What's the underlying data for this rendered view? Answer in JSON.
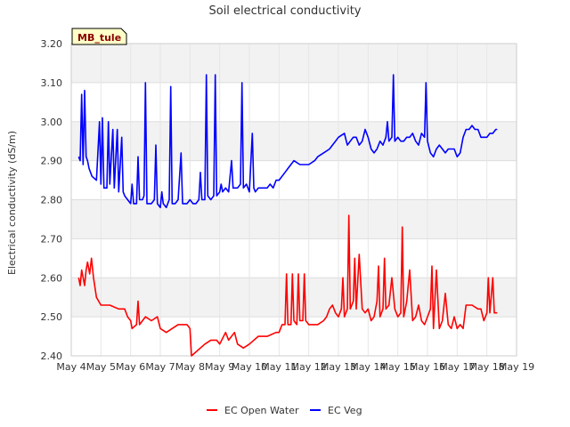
{
  "chart_data": {
    "type": "line",
    "title": "Soil electrical conductivity",
    "ylabel": "Electrical conductivity (dS/m)",
    "xlabel": "",
    "site_badge": "MB_tule",
    "ylim": [
      2.4,
      3.2
    ],
    "yticks": [
      "2.40",
      "2.50",
      "2.60",
      "2.70",
      "2.80",
      "2.90",
      "3.00",
      "3.10",
      "3.20"
    ],
    "xlim": [
      4,
      19
    ],
    "xticks": [
      {
        "day": 4,
        "label": "May 4"
      },
      {
        "day": 5,
        "label": "May 5"
      },
      {
        "day": 6,
        "label": "May 6"
      },
      {
        "day": 7,
        "label": "May 7"
      },
      {
        "day": 8,
        "label": "May 8"
      },
      {
        "day": 9,
        "label": "May 9"
      },
      {
        "day": 10,
        "label": "May 10"
      },
      {
        "day": 11,
        "label": "May 11"
      },
      {
        "day": 12,
        "label": "May 12"
      },
      {
        "day": 13,
        "label": "May 13"
      },
      {
        "day": 14,
        "label": "May 14"
      },
      {
        "day": 15,
        "label": "May 15"
      },
      {
        "day": 16,
        "label": "May 16"
      },
      {
        "day": 17,
        "label": "May 17"
      },
      {
        "day": 18,
        "label": "May 18"
      },
      {
        "day": 19,
        "label": "May 19"
      }
    ],
    "grid": true,
    "legend_position": "bottom",
    "series": [
      {
        "name": "EC Open Water",
        "color": "#ff0000",
        "points": [
          [
            4.25,
            2.6
          ],
          [
            4.3,
            2.58
          ],
          [
            4.35,
            2.62
          ],
          [
            4.45,
            2.58
          ],
          [
            4.5,
            2.62
          ],
          [
            4.55,
            2.64
          ],
          [
            4.62,
            2.61
          ],
          [
            4.68,
            2.65
          ],
          [
            4.75,
            2.6
          ],
          [
            4.85,
            2.55
          ],
          [
            5.0,
            2.53
          ],
          [
            5.3,
            2.53
          ],
          [
            5.6,
            2.52
          ],
          [
            5.8,
            2.52
          ],
          [
            5.9,
            2.5
          ],
          [
            6.0,
            2.49
          ],
          [
            6.05,
            2.47
          ],
          [
            6.2,
            2.48
          ],
          [
            6.25,
            2.54
          ],
          [
            6.3,
            2.48
          ],
          [
            6.5,
            2.5
          ],
          [
            6.7,
            2.49
          ],
          [
            6.9,
            2.5
          ],
          [
            7.0,
            2.47
          ],
          [
            7.2,
            2.46
          ],
          [
            7.4,
            2.47
          ],
          [
            7.6,
            2.48
          ],
          [
            7.9,
            2.48
          ],
          [
            8.0,
            2.47
          ],
          [
            8.05,
            2.4
          ],
          [
            8.2,
            2.41
          ],
          [
            8.5,
            2.43
          ],
          [
            8.7,
            2.44
          ],
          [
            8.9,
            2.44
          ],
          [
            9.0,
            2.43
          ],
          [
            9.2,
            2.46
          ],
          [
            9.3,
            2.44
          ],
          [
            9.5,
            2.46
          ],
          [
            9.6,
            2.43
          ],
          [
            9.8,
            2.42
          ],
          [
            10.0,
            2.43
          ],
          [
            10.3,
            2.45
          ],
          [
            10.6,
            2.45
          ],
          [
            10.9,
            2.46
          ],
          [
            11.0,
            2.46
          ],
          [
            11.1,
            2.48
          ],
          [
            11.2,
            2.48
          ],
          [
            11.25,
            2.61
          ],
          [
            11.3,
            2.48
          ],
          [
            11.4,
            2.48
          ],
          [
            11.45,
            2.61
          ],
          [
            11.5,
            2.49
          ],
          [
            11.6,
            2.48
          ],
          [
            11.65,
            2.61
          ],
          [
            11.7,
            2.49
          ],
          [
            11.8,
            2.49
          ],
          [
            11.85,
            2.61
          ],
          [
            11.9,
            2.49
          ],
          [
            12.0,
            2.48
          ],
          [
            12.3,
            2.48
          ],
          [
            12.5,
            2.49
          ],
          [
            12.6,
            2.5
          ],
          [
            12.7,
            2.52
          ],
          [
            12.8,
            2.53
          ],
          [
            12.9,
            2.51
          ],
          [
            13.0,
            2.5
          ],
          [
            13.1,
            2.52
          ],
          [
            13.15,
            2.6
          ],
          [
            13.2,
            2.5
          ],
          [
            13.3,
            2.52
          ],
          [
            13.35,
            2.76
          ],
          [
            13.4,
            2.52
          ],
          [
            13.5,
            2.54
          ],
          [
            13.55,
            2.65
          ],
          [
            13.6,
            2.52
          ],
          [
            13.7,
            2.66
          ],
          [
            13.8,
            2.52
          ],
          [
            13.9,
            2.51
          ],
          [
            14.0,
            2.52
          ],
          [
            14.1,
            2.49
          ],
          [
            14.2,
            2.5
          ],
          [
            14.3,
            2.54
          ],
          [
            14.35,
            2.63
          ],
          [
            14.4,
            2.5
          ],
          [
            14.5,
            2.52
          ],
          [
            14.55,
            2.65
          ],
          [
            14.6,
            2.52
          ],
          [
            14.7,
            2.53
          ],
          [
            14.8,
            2.6
          ],
          [
            14.9,
            2.52
          ],
          [
            15.0,
            2.5
          ],
          [
            15.1,
            2.51
          ],
          [
            15.15,
            2.73
          ],
          [
            15.2,
            2.5
          ],
          [
            15.3,
            2.54
          ],
          [
            15.4,
            2.62
          ],
          [
            15.5,
            2.49
          ],
          [
            15.6,
            2.5
          ],
          [
            15.7,
            2.53
          ],
          [
            15.8,
            2.49
          ],
          [
            15.9,
            2.48
          ],
          [
            16.0,
            2.5
          ],
          [
            16.1,
            2.52
          ],
          [
            16.15,
            2.63
          ],
          [
            16.2,
            2.47
          ],
          [
            16.3,
            2.62
          ],
          [
            16.4,
            2.47
          ],
          [
            16.5,
            2.49
          ],
          [
            16.6,
            2.56
          ],
          [
            16.7,
            2.48
          ],
          [
            16.8,
            2.47
          ],
          [
            16.9,
            2.5
          ],
          [
            17.0,
            2.47
          ],
          [
            17.1,
            2.48
          ],
          [
            17.2,
            2.47
          ],
          [
            17.3,
            2.53
          ],
          [
            17.5,
            2.53
          ],
          [
            17.7,
            2.52
          ],
          [
            17.8,
            2.52
          ],
          [
            17.9,
            2.49
          ],
          [
            18.0,
            2.51
          ],
          [
            18.05,
            2.6
          ],
          [
            18.1,
            2.51
          ],
          [
            18.2,
            2.6
          ],
          [
            18.25,
            2.51
          ],
          [
            18.35,
            2.51
          ]
        ]
      },
      {
        "name": "EC Veg",
        "color": "#0000ff",
        "points": [
          [
            4.25,
            2.91
          ],
          [
            4.3,
            2.9
          ],
          [
            4.35,
            3.07
          ],
          [
            4.4,
            2.89
          ],
          [
            4.45,
            3.08
          ],
          [
            4.5,
            2.91
          ],
          [
            4.55,
            2.9
          ],
          [
            4.6,
            2.88
          ],
          [
            4.7,
            2.86
          ],
          [
            4.85,
            2.85
          ],
          [
            4.95,
            3.0
          ],
          [
            5.0,
            2.84
          ],
          [
            5.05,
            3.01
          ],
          [
            5.1,
            2.83
          ],
          [
            5.2,
            2.83
          ],
          [
            5.25,
            3.0
          ],
          [
            5.3,
            2.84
          ],
          [
            5.4,
            2.98
          ],
          [
            5.45,
            2.83
          ],
          [
            5.55,
            2.98
          ],
          [
            5.6,
            2.82
          ],
          [
            5.7,
            2.96
          ],
          [
            5.75,
            2.82
          ],
          [
            5.8,
            2.81
          ],
          [
            5.9,
            2.8
          ],
          [
            6.0,
            2.79
          ],
          [
            6.05,
            2.84
          ],
          [
            6.1,
            2.79
          ],
          [
            6.2,
            2.79
          ],
          [
            6.25,
            2.91
          ],
          [
            6.3,
            2.8
          ],
          [
            6.4,
            2.8
          ],
          [
            6.45,
            2.81
          ],
          [
            6.5,
            3.1
          ],
          [
            6.55,
            2.79
          ],
          [
            6.7,
            2.79
          ],
          [
            6.8,
            2.8
          ],
          [
            6.85,
            2.94
          ],
          [
            6.9,
            2.79
          ],
          [
            7.0,
            2.78
          ],
          [
            7.05,
            2.82
          ],
          [
            7.1,
            2.79
          ],
          [
            7.2,
            2.78
          ],
          [
            7.3,
            2.8
          ],
          [
            7.35,
            3.09
          ],
          [
            7.4,
            2.79
          ],
          [
            7.5,
            2.79
          ],
          [
            7.6,
            2.8
          ],
          [
            7.7,
            2.92
          ],
          [
            7.75,
            2.79
          ],
          [
            7.9,
            2.79
          ],
          [
            8.0,
            2.8
          ],
          [
            8.1,
            2.79
          ],
          [
            8.2,
            2.79
          ],
          [
            8.3,
            2.8
          ],
          [
            8.35,
            2.87
          ],
          [
            8.4,
            2.8
          ],
          [
            8.5,
            2.8
          ],
          [
            8.55,
            3.12
          ],
          [
            8.6,
            2.81
          ],
          [
            8.7,
            2.8
          ],
          [
            8.8,
            2.81
          ],
          [
            8.85,
            3.12
          ],
          [
            8.9,
            2.81
          ],
          [
            9.0,
            2.82
          ],
          [
            9.05,
            2.84
          ],
          [
            9.1,
            2.82
          ],
          [
            9.2,
            2.83
          ],
          [
            9.3,
            2.82
          ],
          [
            9.4,
            2.9
          ],
          [
            9.45,
            2.83
          ],
          [
            9.6,
            2.83
          ],
          [
            9.7,
            2.84
          ],
          [
            9.75,
            3.1
          ],
          [
            9.8,
            2.83
          ],
          [
            9.9,
            2.84
          ],
          [
            10.0,
            2.82
          ],
          [
            10.1,
            2.97
          ],
          [
            10.15,
            2.83
          ],
          [
            10.2,
            2.82
          ],
          [
            10.3,
            2.83
          ],
          [
            10.5,
            2.83
          ],
          [
            10.6,
            2.83
          ],
          [
            10.7,
            2.84
          ],
          [
            10.8,
            2.83
          ],
          [
            10.9,
            2.85
          ],
          [
            11.0,
            2.85
          ],
          [
            11.2,
            2.87
          ],
          [
            11.3,
            2.88
          ],
          [
            11.5,
            2.9
          ],
          [
            11.7,
            2.89
          ],
          [
            11.9,
            2.89
          ],
          [
            12.0,
            2.89
          ],
          [
            12.2,
            2.9
          ],
          [
            12.3,
            2.91
          ],
          [
            12.5,
            2.92
          ],
          [
            12.7,
            2.93
          ],
          [
            12.8,
            2.94
          ],
          [
            12.9,
            2.95
          ],
          [
            13.0,
            2.96
          ],
          [
            13.2,
            2.97
          ],
          [
            13.3,
            2.94
          ],
          [
            13.4,
            2.95
          ],
          [
            13.5,
            2.96
          ],
          [
            13.6,
            2.96
          ],
          [
            13.7,
            2.94
          ],
          [
            13.8,
            2.95
          ],
          [
            13.9,
            2.98
          ],
          [
            14.0,
            2.96
          ],
          [
            14.1,
            2.93
          ],
          [
            14.2,
            2.92
          ],
          [
            14.3,
            2.93
          ],
          [
            14.4,
            2.95
          ],
          [
            14.5,
            2.94
          ],
          [
            14.6,
            2.96
          ],
          [
            14.65,
            3.0
          ],
          [
            14.7,
            2.95
          ],
          [
            14.8,
            2.96
          ],
          [
            14.85,
            3.12
          ],
          [
            14.9,
            2.95
          ],
          [
            15.0,
            2.96
          ],
          [
            15.1,
            2.95
          ],
          [
            15.2,
            2.95
          ],
          [
            15.3,
            2.96
          ],
          [
            15.4,
            2.96
          ],
          [
            15.5,
            2.97
          ],
          [
            15.6,
            2.95
          ],
          [
            15.7,
            2.94
          ],
          [
            15.8,
            2.97
          ],
          [
            15.9,
            2.96
          ],
          [
            15.95,
            3.1
          ],
          [
            16.0,
            2.95
          ],
          [
            16.1,
            2.92
          ],
          [
            16.2,
            2.91
          ],
          [
            16.3,
            2.93
          ],
          [
            16.4,
            2.94
          ],
          [
            16.5,
            2.93
          ],
          [
            16.6,
            2.92
          ],
          [
            16.7,
            2.93
          ],
          [
            16.8,
            2.93
          ],
          [
            16.9,
            2.93
          ],
          [
            17.0,
            2.91
          ],
          [
            17.1,
            2.92
          ],
          [
            17.2,
            2.96
          ],
          [
            17.3,
            2.98
          ],
          [
            17.4,
            2.98
          ],
          [
            17.5,
            2.99
          ],
          [
            17.6,
            2.98
          ],
          [
            17.7,
            2.98
          ],
          [
            17.8,
            2.96
          ],
          [
            17.9,
            2.96
          ],
          [
            18.0,
            2.96
          ],
          [
            18.1,
            2.97
          ],
          [
            18.2,
            2.97
          ],
          [
            18.3,
            2.98
          ],
          [
            18.35,
            2.98
          ]
        ]
      }
    ]
  }
}
